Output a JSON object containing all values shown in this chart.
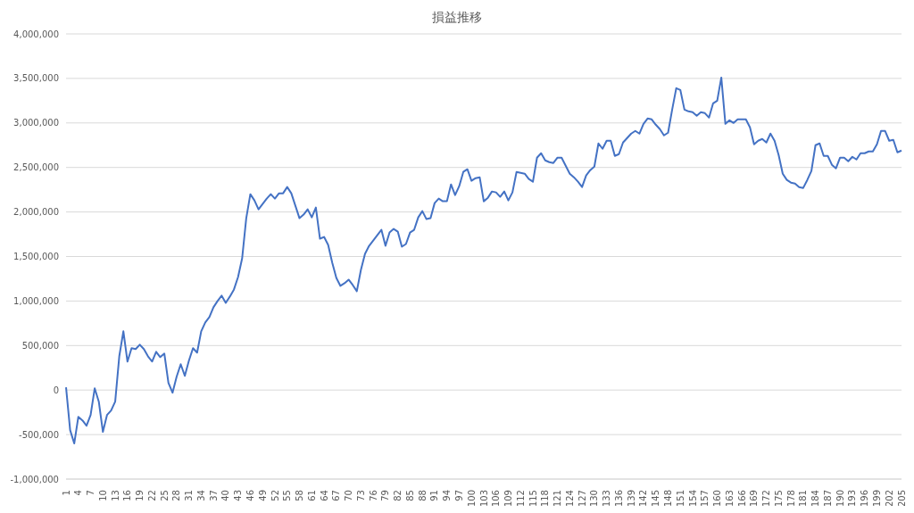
{
  "chart_data": {
    "type": "line",
    "title": "損益推移",
    "categories": [
      "1",
      null,
      null,
      "4",
      null,
      null,
      "7",
      null,
      null,
      "10",
      null,
      null,
      "13",
      null,
      null,
      "16",
      null,
      null,
      "19",
      null,
      null,
      "22",
      null,
      null,
      "25",
      null,
      null,
      "28",
      null,
      null,
      "31",
      null,
      null,
      "34",
      null,
      null,
      "37",
      null,
      null,
      "40",
      null,
      null,
      "43",
      null,
      null,
      "46",
      null,
      null,
      "49",
      null,
      null,
      "52",
      null,
      null,
      "55",
      null,
      null,
      "58",
      null,
      null,
      "61",
      null,
      null,
      "64",
      null,
      null,
      "67",
      null,
      null,
      "70",
      null,
      null,
      "73",
      null,
      null,
      "76",
      null,
      null,
      "79",
      null,
      null,
      "82",
      null,
      null,
      "85",
      null,
      null,
      "88",
      null,
      null,
      "91",
      null,
      null,
      "94",
      null,
      null,
      "97",
      null,
      null,
      "100",
      null,
      null,
      "103",
      null,
      null,
      "106",
      null,
      null,
      "109",
      null,
      null,
      "112",
      null,
      null,
      "115",
      null,
      null,
      "118",
      null,
      null,
      "121",
      null,
      null,
      "124",
      null,
      null,
      "127",
      null,
      null,
      "130",
      null,
      null,
      "133",
      null,
      null,
      "136",
      null,
      null,
      "139",
      null,
      null,
      "142",
      null,
      null,
      "145",
      null,
      null,
      "148",
      null,
      null,
      "151",
      null,
      null,
      "154",
      null,
      null,
      "157",
      null,
      null,
      "160",
      null,
      null,
      "163",
      null,
      null,
      "166",
      null,
      null,
      "169",
      null,
      null,
      "172",
      null,
      null,
      "175",
      null,
      null,
      "178",
      null,
      null,
      "181",
      null,
      null,
      "184",
      null,
      null,
      "187",
      null,
      null,
      "190",
      null,
      null,
      "193",
      null,
      null,
      "196",
      null,
      null,
      "199",
      null,
      null,
      "202",
      null,
      null,
      "205"
    ],
    "series": [
      {
        "color": "#4472c4",
        "values": [
          30000,
          -450000,
          -600000,
          -300000,
          -340000,
          -400000,
          -280000,
          20000,
          -130000,
          -470000,
          -280000,
          -230000,
          -130000,
          380000,
          660000,
          320000,
          470000,
          460000,
          510000,
          460000,
          380000,
          320000,
          430000,
          370000,
          410000,
          80000,
          -30000,
          150000,
          290000,
          160000,
          330000,
          470000,
          420000,
          660000,
          760000,
          820000,
          930000,
          1000000,
          1060000,
          980000,
          1050000,
          1130000,
          1270000,
          1480000,
          1930000,
          2200000,
          2130000,
          2030000,
          2090000,
          2150000,
          2200000,
          2150000,
          2210000,
          2210000,
          2280000,
          2210000,
          2070000,
          1930000,
          1970000,
          2030000,
          1940000,
          2050000,
          1700000,
          1720000,
          1630000,
          1430000,
          1260000,
          1170000,
          1200000,
          1240000,
          1180000,
          1110000,
          1350000,
          1530000,
          1620000,
          1680000,
          1740000,
          1800000,
          1620000,
          1770000,
          1810000,
          1780000,
          1610000,
          1640000,
          1770000,
          1800000,
          1940000,
          2010000,
          1920000,
          1930000,
          2100000,
          2150000,
          2120000,
          2120000,
          2310000,
          2190000,
          2290000,
          2450000,
          2480000,
          2350000,
          2380000,
          2390000,
          2120000,
          2160000,
          2230000,
          2220000,
          2170000,
          2230000,
          2130000,
          2220000,
          2450000,
          2440000,
          2430000,
          2370000,
          2340000,
          2610000,
          2660000,
          2580000,
          2560000,
          2550000,
          2610000,
          2610000,
          2520000,
          2430000,
          2390000,
          2340000,
          2280000,
          2410000,
          2470000,
          2510000,
          2770000,
          2710000,
          2800000,
          2800000,
          2630000,
          2650000,
          2780000,
          2830000,
          2880000,
          2910000,
          2880000,
          2990000,
          3050000,
          3040000,
          2980000,
          2930000,
          2860000,
          2890000,
          3150000,
          3390000,
          3370000,
          3150000,
          3130000,
          3120000,
          3080000,
          3120000,
          3110000,
          3060000,
          3220000,
          3250000,
          3510000,
          2990000,
          3030000,
          3000000,
          3040000,
          3040000,
          3040000,
          2950000,
          2760000,
          2800000,
          2820000,
          2780000,
          2880000,
          2800000,
          2640000,
          2430000,
          2360000,
          2330000,
          2320000,
          2280000,
          2270000,
          2360000,
          2460000,
          2750000,
          2770000,
          2630000,
          2630000,
          2530000,
          2490000,
          2610000,
          2610000,
          2570000,
          2620000,
          2590000,
          2660000,
          2660000,
          2680000,
          2680000,
          2760000,
          2910000,
          2910000,
          2800000,
          2810000,
          2670000,
          2690000
        ]
      }
    ],
    "ylim": [
      -1000000,
      4000000
    ],
    "yticks": [
      {
        "value": -1000000,
        "label": "-1,000,000"
      },
      {
        "value": -500000,
        "label": "-500,000"
      },
      0,
      {
        "value": 500000,
        "label": "500,000"
      },
      {
        "value": 1000000,
        "label": "1,000,000"
      },
      {
        "value": 1500000,
        "label": "1,500,000"
      },
      {
        "value": 2000000,
        "label": "2,000,000"
      },
      {
        "value": 2500000,
        "label": "2,500,000"
      },
      {
        "value": 3000000,
        "label": "3,000,000"
      },
      {
        "value": 3500000,
        "label": "3,500,000"
      },
      {
        "value": 4000000,
        "label": "4,000,000"
      }
    ],
    "grid": "y",
    "legend": false,
    "marker": "none",
    "line_style": "solid"
  }
}
